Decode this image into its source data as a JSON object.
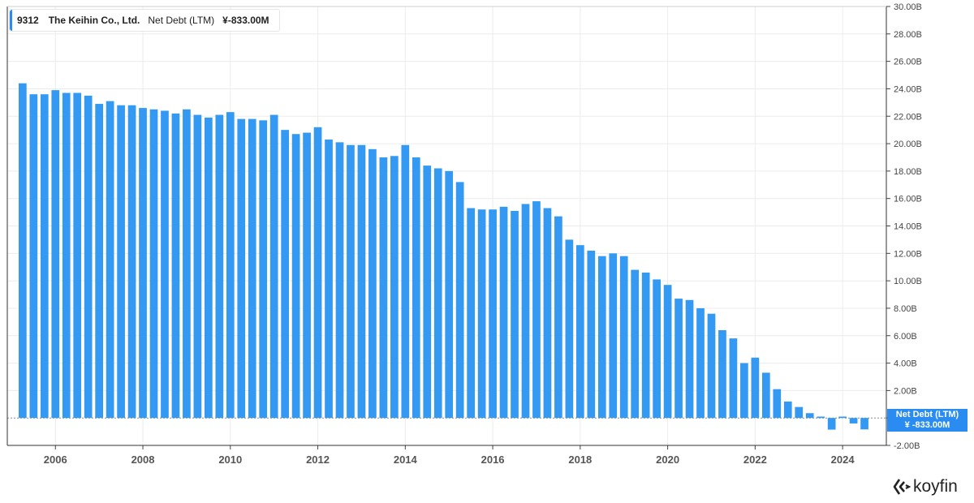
{
  "legend": {
    "ticker": "9312",
    "company": "The Keihin Co., Ltd.",
    "metric": "Net Debt (LTM)",
    "value": "¥-833.00M"
  },
  "value_tag": {
    "label": "Net Debt (LTM)",
    "value": "¥ -833.00M"
  },
  "logo": {
    "text": "koyfin",
    "icon": "koyfin-logo-icon"
  },
  "colors": {
    "bar": "#3399f3",
    "accent": "#2a8cf0"
  },
  "chart_data": {
    "type": "bar",
    "x_ticks": [
      "2006",
      "2008",
      "2010",
      "2012",
      "2014",
      "2016",
      "2018",
      "2020",
      "2022",
      "2024"
    ],
    "y_ticks": [
      "-2.00B",
      "0.00B",
      "2.00B",
      "4.00B",
      "6.00B",
      "8.00B",
      "10.00B",
      "12.00B",
      "14.00B",
      "16.00B",
      "18.00B",
      "20.00B",
      "22.00B",
      "24.00B",
      "26.00B",
      "28.00B",
      "30.00B"
    ],
    "ylim": [
      -2.0,
      30.0
    ],
    "xlim": [
      2004.9,
      2025.0
    ],
    "grid": true,
    "series": [
      {
        "x": [
          2005.25,
          2005.5,
          2005.75,
          2006.0,
          2006.25,
          2006.5,
          2006.75,
          2007.0,
          2007.25,
          2007.5,
          2007.75,
          2008.0,
          2008.25,
          2008.5,
          2008.75,
          2009.0,
          2009.25,
          2009.5,
          2009.75,
          2010.0,
          2010.25,
          2010.5,
          2010.75,
          2011.0,
          2011.25,
          2011.5,
          2011.75,
          2012.0,
          2012.25,
          2012.5,
          2012.75,
          2013.0,
          2013.25,
          2013.5,
          2013.75,
          2014.0,
          2014.25,
          2014.5,
          2014.75,
          2015.0,
          2015.25,
          2015.5,
          2015.75,
          2016.0,
          2016.25,
          2016.5,
          2016.75,
          2017.0,
          2017.25,
          2017.5,
          2017.75,
          2018.0,
          2018.25,
          2018.5,
          2018.75,
          2019.0,
          2019.25,
          2019.5,
          2019.75,
          2020.0,
          2020.25,
          2020.5,
          2020.75,
          2021.0,
          2021.25,
          2021.5,
          2021.75,
          2022.0,
          2022.25,
          2022.5,
          2022.75,
          2023.0,
          2023.25,
          2023.5,
          2023.75,
          2024.0,
          2024.25,
          2024.5
        ],
        "values": [
          24.4,
          23.6,
          23.6,
          23.9,
          23.7,
          23.7,
          23.5,
          22.9,
          23.1,
          22.8,
          22.8,
          22.6,
          22.5,
          22.4,
          22.2,
          22.5,
          22.1,
          21.9,
          22.1,
          22.3,
          21.8,
          21.8,
          21.7,
          22.1,
          21.0,
          20.7,
          20.8,
          21.2,
          20.3,
          20.1,
          19.9,
          19.9,
          19.6,
          19.0,
          19.1,
          19.9,
          19.0,
          18.4,
          18.2,
          18.0,
          17.2,
          15.3,
          15.2,
          15.2,
          15.4,
          15.1,
          15.6,
          15.8,
          15.3,
          14.7,
          13.0,
          12.6,
          12.2,
          11.8,
          12.0,
          11.8,
          10.8,
          10.6,
          10.1,
          9.7,
          8.7,
          8.6,
          8.0,
          7.6,
          6.4,
          5.8,
          4.0,
          4.4,
          3.3,
          2.1,
          1.2,
          0.8,
          0.35,
          0.1,
          -0.85,
          0.1,
          -0.4,
          -0.833
        ]
      }
    ]
  }
}
